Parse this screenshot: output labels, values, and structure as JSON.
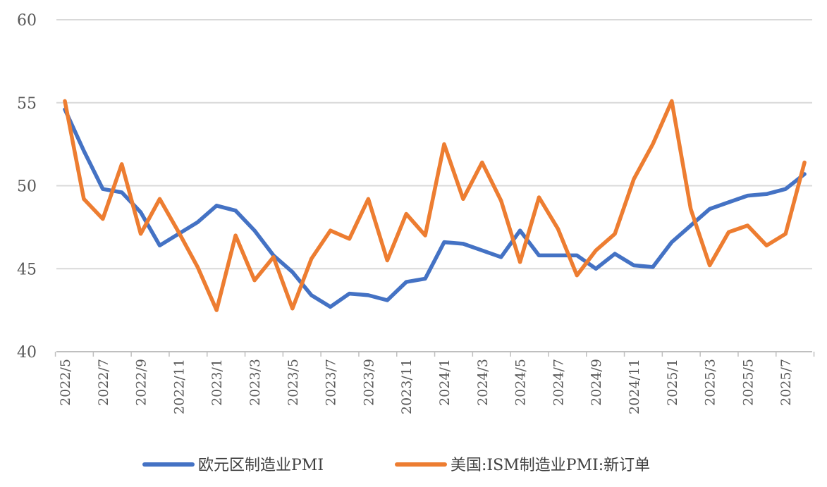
{
  "chart_data": {
    "type": "line",
    "title": "",
    "xlabel": "",
    "ylabel": "",
    "ylim": [
      40,
      60
    ],
    "yticks": [
      40,
      45,
      50,
      55,
      60
    ],
    "grid": "horizontal",
    "legend_position": "bottom",
    "x": [
      "2022/5",
      "2022/6",
      "2022/7",
      "2022/8",
      "2022/9",
      "2022/10",
      "2022/11",
      "2022/12",
      "2023/1",
      "2023/2",
      "2023/3",
      "2023/4",
      "2023/5",
      "2023/6",
      "2023/7",
      "2023/8",
      "2023/9",
      "2023/10",
      "2023/11",
      "2023/12",
      "2024/1",
      "2024/2",
      "2024/3",
      "2024/4",
      "2024/5",
      "2024/6",
      "2024/7",
      "2024/8",
      "2024/9",
      "2024/10",
      "2024/11",
      "2024/12",
      "2025/1",
      "2025/2",
      "2025/3",
      "2025/4",
      "2025/5",
      "2025/6",
      "2025/7",
      "2025/8"
    ],
    "tick_labels": [
      "2022/5",
      "2022/7",
      "2022/9",
      "2022/11",
      "2023/1",
      "2023/3",
      "2023/5",
      "2023/7",
      "2023/9",
      "2023/11",
      "2024/1",
      "2024/3",
      "2024/5",
      "2024/7",
      "2024/9",
      "2024/11",
      "2025/1",
      "2025/3",
      "2025/5",
      "2025/7"
    ],
    "series": [
      {
        "name": "欧元区制造业PMI",
        "color": "#4472C4",
        "values": [
          54.6,
          52.1,
          49.8,
          49.6,
          48.4,
          46.4,
          47.1,
          47.8,
          48.8,
          48.5,
          47.3,
          45.8,
          44.8,
          43.4,
          42.7,
          43.5,
          43.4,
          43.1,
          44.2,
          44.4,
          46.6,
          46.5,
          46.1,
          45.7,
          47.3,
          45.8,
          45.8,
          45.8,
          45.0,
          45.9,
          45.2,
          45.1,
          46.6,
          47.6,
          48.6,
          49.0,
          49.4,
          49.5,
          49.8,
          50.7
        ]
      },
      {
        "name": "美国:ISM制造业PMI:新订单",
        "color": "#ED7D31",
        "values": [
          55.1,
          49.2,
          48.0,
          51.3,
          47.1,
          49.2,
          47.2,
          45.1,
          42.5,
          47.0,
          44.3,
          45.7,
          42.6,
          45.6,
          47.3,
          46.8,
          49.2,
          45.5,
          48.3,
          47.0,
          52.5,
          49.2,
          51.4,
          49.1,
          45.4,
          49.3,
          47.4,
          44.6,
          46.1,
          47.1,
          50.4,
          52.5,
          55.1,
          48.6,
          45.2,
          47.2,
          47.6,
          46.4,
          47.1,
          51.4
        ]
      }
    ]
  }
}
